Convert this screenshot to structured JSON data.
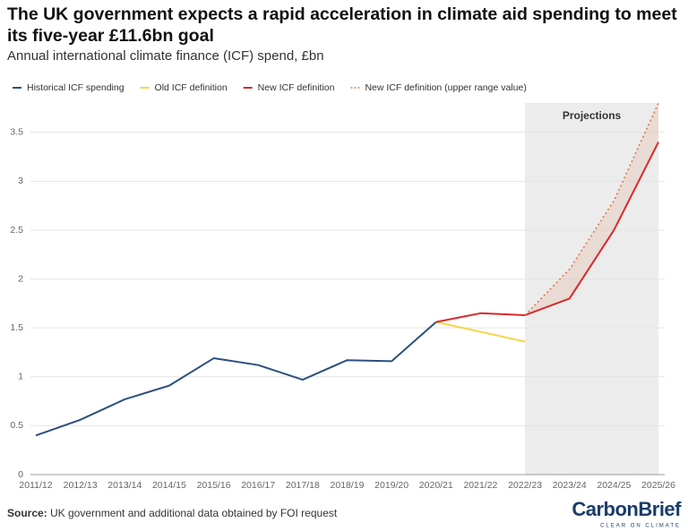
{
  "chart_data": {
    "type": "line",
    "title": "The UK government expects a rapid acceleration in climate aid spending to meet its five-year £11.6bn goal",
    "subtitle": "Annual international climate finance (ICF) spend, £bn",
    "categories": [
      "2011/12",
      "2012/13",
      "2013/14",
      "2014/15",
      "2015/16",
      "2016/17",
      "2017/18",
      "2018/19",
      "2019/20",
      "2020/21",
      "2021/22",
      "2022/23",
      "2023/24",
      "2024/25",
      "2025/26"
    ],
    "series": [
      {
        "name": "Historical ICF spending",
        "color": "#2c4f80",
        "style": "solid",
        "values": [
          0.4,
          0.56,
          0.77,
          0.91,
          1.19,
          1.12,
          0.97,
          1.17,
          1.16,
          1.56,
          null,
          null,
          null,
          null,
          null
        ]
      },
      {
        "name": "Old ICF definition",
        "color": "#f5d547",
        "style": "solid",
        "values": [
          null,
          null,
          null,
          null,
          null,
          null,
          null,
          null,
          null,
          1.56,
          1.46,
          1.36,
          null,
          null,
          null
        ]
      },
      {
        "name": "New ICF definition",
        "color": "#d62b2b",
        "style": "solid",
        "values": [
          null,
          null,
          null,
          null,
          null,
          null,
          null,
          null,
          null,
          1.56,
          1.65,
          1.63,
          1.8,
          2.5,
          3.4
        ]
      },
      {
        "name": "New ICF definition (upper range value)",
        "color": "#e07a4a",
        "style": "dotted",
        "values": [
          null,
          null,
          null,
          null,
          null,
          null,
          null,
          null,
          null,
          null,
          null,
          1.63,
          2.1,
          2.8,
          3.8
        ]
      }
    ],
    "shaded_region": {
      "label": "Projections",
      "from": "2022/23",
      "to": "2025/26"
    },
    "ylim": [
      0,
      3.8
    ],
    "yticks": [
      0,
      0.5,
      1,
      1.5,
      2,
      2.5,
      3,
      3.5
    ],
    "grid": true,
    "legend": "top"
  },
  "source": {
    "label": "Source:",
    "text": "UK government and additional data obtained by FOI request"
  },
  "logo": {
    "name": "CarbonBrief",
    "tagline": "CLEAR ON CLIMATE"
  }
}
